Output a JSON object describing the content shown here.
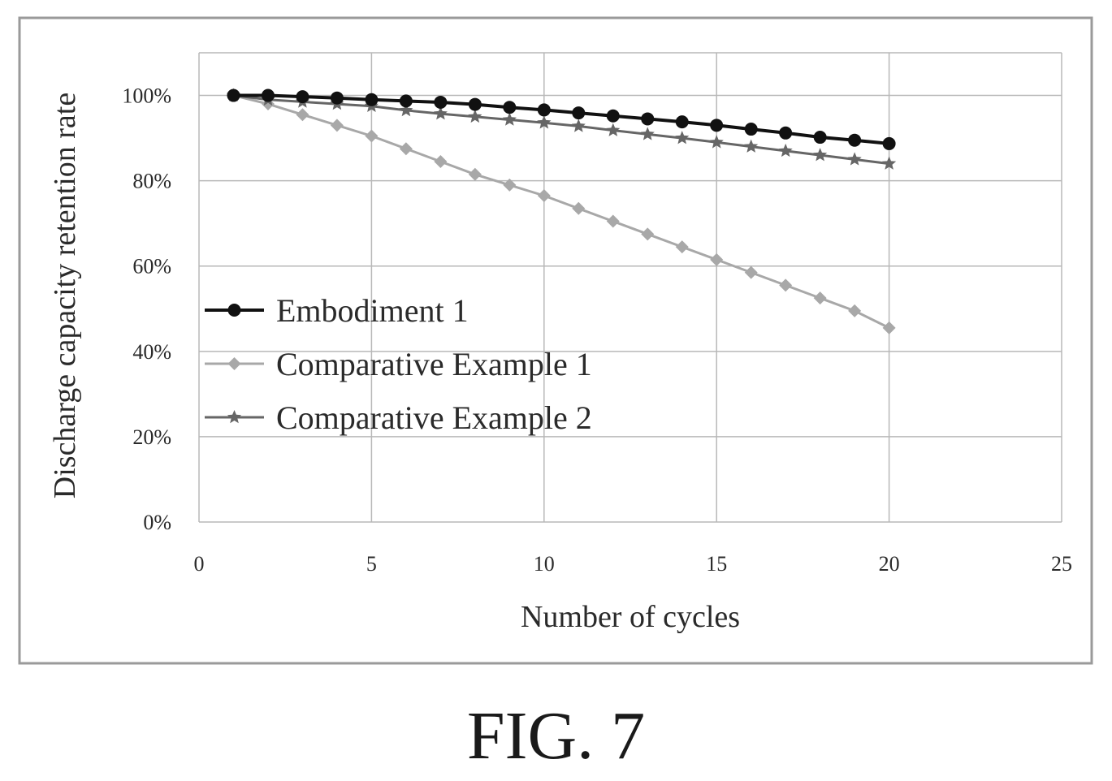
{
  "caption": "FIG. 7",
  "chart_data": {
    "type": "line",
    "xlabel": "Number of cycles",
    "ylabel": "Discharge capacity retention rate",
    "xlim": [
      0,
      25
    ],
    "ylim": [
      0,
      1.1
    ],
    "xticks": [
      "0",
      "5",
      "10",
      "15",
      "20",
      "25"
    ],
    "yticks": [
      "0%",
      "20%",
      "40%",
      "60%",
      "80%",
      "100%"
    ],
    "grid": true,
    "legend_position": "center-left",
    "x": [
      1,
      2,
      3,
      4,
      5,
      6,
      7,
      8,
      9,
      10,
      11,
      12,
      13,
      14,
      15,
      16,
      17,
      18,
      19,
      20
    ],
    "series": [
      {
        "name": "Embodiment 1",
        "color": "#111111",
        "marker": "circle",
        "values": [
          1.0,
          1.0,
          0.997,
          0.994,
          0.99,
          0.987,
          0.984,
          0.979,
          0.972,
          0.966,
          0.959,
          0.952,
          0.945,
          0.938,
          0.93,
          0.921,
          0.912,
          0.902,
          0.895,
          0.887
        ]
      },
      {
        "name": "Comparative Example 1",
        "color": "#a8a8a8",
        "marker": "diamond",
        "values": [
          1.0,
          0.98,
          0.955,
          0.93,
          0.905,
          0.875,
          0.845,
          0.815,
          0.79,
          0.765,
          0.735,
          0.705,
          0.675,
          0.645,
          0.615,
          0.585,
          0.555,
          0.525,
          0.495,
          0.455
        ]
      },
      {
        "name": "Comparative Example 2",
        "color": "#666666",
        "marker": "star",
        "values": [
          1.0,
          0.99,
          0.985,
          0.98,
          0.975,
          0.965,
          0.957,
          0.95,
          0.943,
          0.936,
          0.928,
          0.918,
          0.909,
          0.9,
          0.89,
          0.88,
          0.87,
          0.86,
          0.85,
          0.84
        ]
      }
    ]
  }
}
